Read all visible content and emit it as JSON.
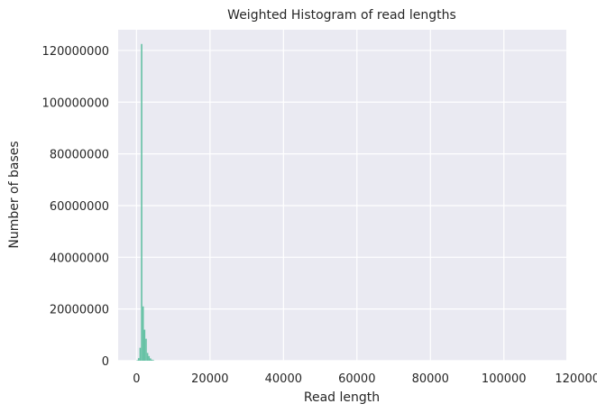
{
  "chart_data": {
    "type": "bar",
    "title": "Weighted Histogram of read lengths",
    "xlabel": "Read length",
    "ylabel": "Number of bases",
    "xlim": [
      -5000,
      117000
    ],
    "ylim": [
      0,
      128000000
    ],
    "x_ticks": [
      0,
      20000,
      40000,
      60000,
      80000,
      100000,
      120000
    ],
    "y_ticks": [
      0,
      20000000,
      40000000,
      60000000,
      80000000,
      100000000,
      120000000
    ],
    "grid": true,
    "bar_color": "#66c2a5",
    "plot_background": "#eaeaf2",
    "bins": [
      {
        "x0": 0,
        "x1": 400,
        "value": 200000
      },
      {
        "x0": 400,
        "x1": 800,
        "value": 1000000
      },
      {
        "x0": 800,
        "x1": 1200,
        "value": 5000000
      },
      {
        "x0": 1200,
        "x1": 1600,
        "value": 122500000
      },
      {
        "x0": 1600,
        "x1": 2000,
        "value": 21000000
      },
      {
        "x0": 2000,
        "x1": 2400,
        "value": 12000000
      },
      {
        "x0": 2400,
        "x1": 2800,
        "value": 8500000
      },
      {
        "x0": 2800,
        "x1": 3200,
        "value": 3000000
      },
      {
        "x0": 3200,
        "x1": 3600,
        "value": 1800000
      },
      {
        "x0": 3600,
        "x1": 4000,
        "value": 900000
      },
      {
        "x0": 4000,
        "x1": 4400,
        "value": 400000
      },
      {
        "x0": 4400,
        "x1": 4800,
        "value": 200000
      }
    ]
  }
}
